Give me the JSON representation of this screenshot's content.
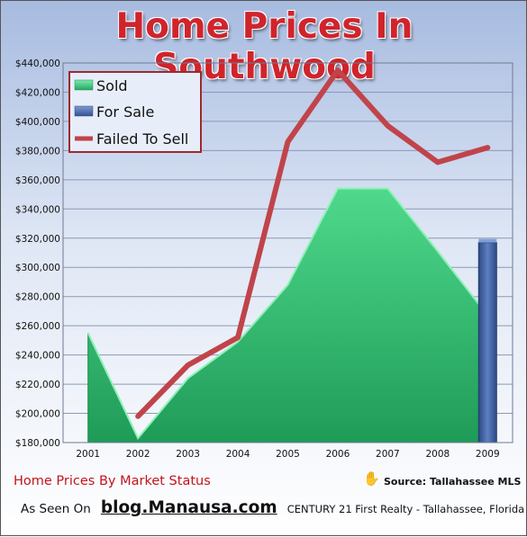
{
  "title": "Home Prices In Southwood",
  "footer": {
    "subtitle": "Home Prices By Market Status",
    "source": "Source: Tallahassee MLS",
    "seen_on": "As Seen On",
    "blog": "blog.Manausa.com",
    "realty": "CENTURY 21 First Realty - Tallahassee, Florida"
  },
  "colors": {
    "title": "#d0242c",
    "sold": "#2fbf72",
    "for_sale": "#3d5d9a",
    "failed": "#c0444a",
    "grid": "#8d99b4"
  },
  "chart_data": {
    "type": "area",
    "categories": [
      "2001",
      "2002",
      "2003",
      "2004",
      "2005",
      "2006",
      "2007",
      "2008",
      "2009"
    ],
    "ylim": [
      180000,
      440000
    ],
    "yticks": [
      "$180,000",
      "$200,000",
      "$220,000",
      "$240,000",
      "$260,000",
      "$280,000",
      "$300,000",
      "$320,000",
      "$340,000",
      "$360,000",
      "$380,000",
      "$400,000",
      "$420,000",
      "$440,000"
    ],
    "ytick_values": [
      180000,
      200000,
      220000,
      240000,
      260000,
      280000,
      300000,
      320000,
      340000,
      360000,
      380000,
      400000,
      420000,
      440000
    ],
    "legend_position": "top-left",
    "series": [
      {
        "name": "Sold",
        "type": "area",
        "values": [
          255000,
          183000,
          224000,
          249000,
          288000,
          354000,
          354000,
          311000,
          267000
        ]
      },
      {
        "name": "For Sale",
        "type": "bar",
        "values": [
          null,
          null,
          null,
          null,
          null,
          null,
          null,
          null,
          317000
        ]
      },
      {
        "name": "Failed To Sell",
        "type": "line",
        "values": [
          null,
          198000,
          233000,
          252000,
          386000,
          435000,
          397000,
          372000,
          382000
        ]
      }
    ]
  }
}
